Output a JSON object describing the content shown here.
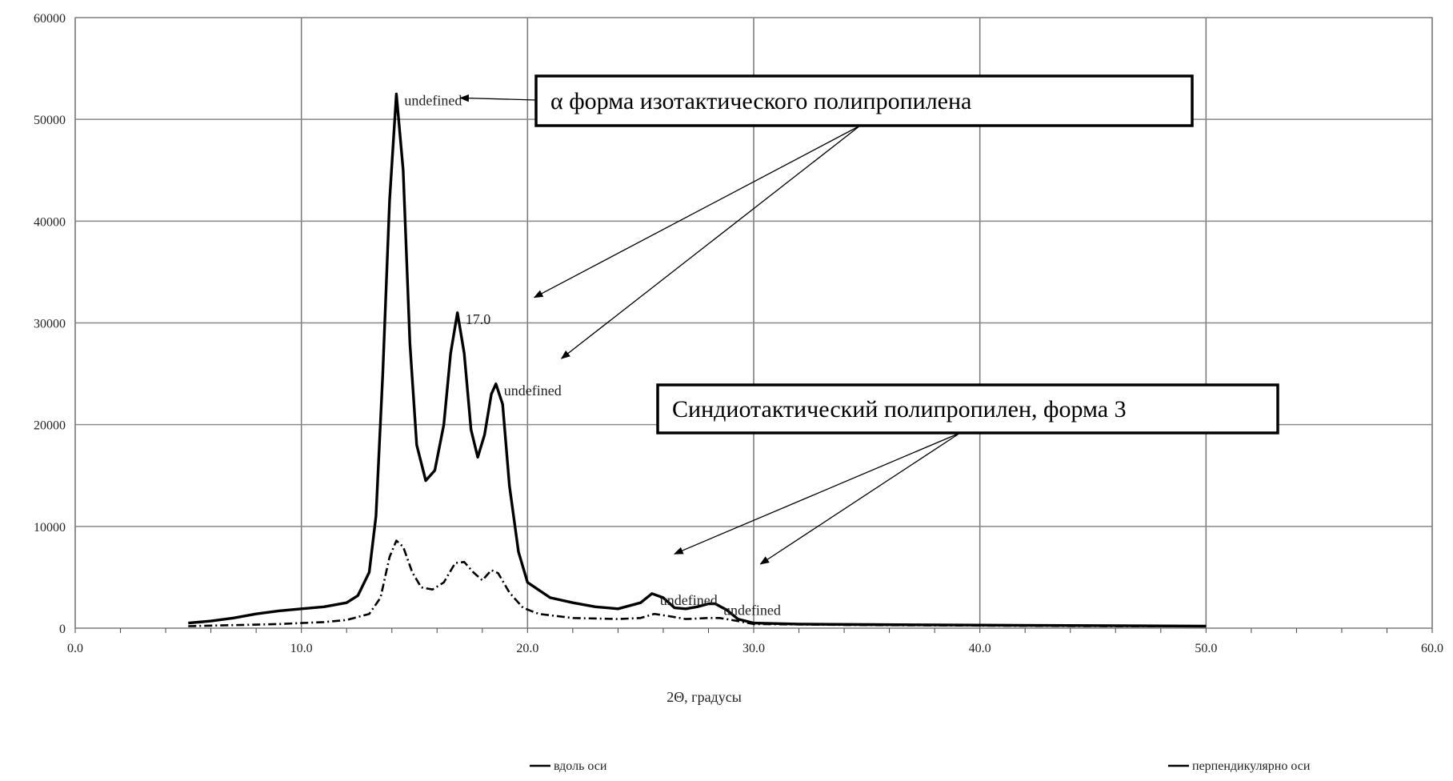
{
  "chart_data": {
    "type": "line",
    "xlabel": "2Θ, градусы",
    "ylabel": "",
    "xlim": [
      0,
      60
    ],
    "ylim": [
      0,
      60000
    ],
    "x_ticks": [
      "0.0",
      "10.0",
      "20.0",
      "30.0",
      "40.0",
      "50.0",
      "60.0"
    ],
    "y_ticks": [
      "0",
      "10000",
      "20000",
      "30000",
      "40000",
      "50000",
      "60000"
    ],
    "grid": true,
    "legend": "bottom",
    "series": [
      {
        "name": "вдоль оси",
        "style": "solid",
        "points": [
          [
            5,
            500
          ],
          [
            6,
            700
          ],
          [
            7,
            1000
          ],
          [
            8,
            1400
          ],
          [
            9,
            1700
          ],
          [
            10,
            1900
          ],
          [
            11,
            2100
          ],
          [
            12,
            2500
          ],
          [
            12.5,
            3200
          ],
          [
            13,
            5500
          ],
          [
            13.3,
            11000
          ],
          [
            13.6,
            25000
          ],
          [
            13.9,
            42000
          ],
          [
            14.2,
            52500
          ],
          [
            14.5,
            45000
          ],
          [
            14.8,
            28000
          ],
          [
            15.1,
            18000
          ],
          [
            15.5,
            14500
          ],
          [
            15.9,
            15500
          ],
          [
            16.3,
            20000
          ],
          [
            16.6,
            27000
          ],
          [
            16.9,
            31000
          ],
          [
            17.2,
            27000
          ],
          [
            17.5,
            19500
          ],
          [
            17.8,
            16800
          ],
          [
            18.1,
            19000
          ],
          [
            18.4,
            23000
          ],
          [
            18.6,
            24000
          ],
          [
            18.9,
            22000
          ],
          [
            19.2,
            14000
          ],
          [
            19.6,
            7500
          ],
          [
            20,
            4500
          ],
          [
            21,
            3000
          ],
          [
            22,
            2500
          ],
          [
            23,
            2100
          ],
          [
            24,
            1900
          ],
          [
            25,
            2500
          ],
          [
            25.5,
            3400
          ],
          [
            26,
            3000
          ],
          [
            26.5,
            2000
          ],
          [
            27,
            1900
          ],
          [
            27.5,
            2100
          ],
          [
            28,
            2400
          ],
          [
            28.3,
            2400
          ],
          [
            28.8,
            1800
          ],
          [
            29.3,
            900
          ],
          [
            30,
            500
          ],
          [
            32,
            400
          ],
          [
            35,
            350
          ],
          [
            40,
            300
          ],
          [
            45,
            250
          ],
          [
            50,
            200
          ]
        ]
      },
      {
        "name": "перпендикулярно оси",
        "style": "dashdot",
        "points": [
          [
            5,
            200
          ],
          [
            7,
            300
          ],
          [
            9,
            400
          ],
          [
            10,
            500
          ],
          [
            11,
            600
          ],
          [
            12,
            800
          ],
          [
            13,
            1400
          ],
          [
            13.5,
            3000
          ],
          [
            13.9,
            7000
          ],
          [
            14.2,
            8600
          ],
          [
            14.5,
            8000
          ],
          [
            14.9,
            5500
          ],
          [
            15.3,
            4000
          ],
          [
            15.8,
            3800
          ],
          [
            16.3,
            4500
          ],
          [
            16.8,
            6400
          ],
          [
            17.2,
            6500
          ],
          [
            17.6,
            5500
          ],
          [
            18,
            4700
          ],
          [
            18.4,
            5700
          ],
          [
            18.7,
            5400
          ],
          [
            19.2,
            3500
          ],
          [
            19.8,
            2000
          ],
          [
            20.5,
            1400
          ],
          [
            22,
            1000
          ],
          [
            24,
            900
          ],
          [
            25,
            1000
          ],
          [
            25.6,
            1400
          ],
          [
            26.2,
            1200
          ],
          [
            27,
            900
          ],
          [
            28,
            1000
          ],
          [
            28.5,
            1000
          ],
          [
            29.3,
            700
          ],
          [
            30,
            400
          ],
          [
            35,
            300
          ],
          [
            40,
            250
          ],
          [
            45,
            200
          ],
          [
            50,
            180
          ]
        ]
      }
    ],
    "peak_labels": [
      {
        "text": "undefined",
        "x": 14.2,
        "y": 52500
      },
      {
        "text": "17.0",
        "x": 16.9,
        "y": 31000
      },
      {
        "text": "undefined",
        "x": 18.6,
        "y": 24000
      },
      {
        "text": "undefined",
        "x": 25.5,
        "y": 3400
      },
      {
        "text": "undefined",
        "x": 28.3,
        "y": 2400
      }
    ],
    "annotations": [
      {
        "text": "α форма изотактического полипропилена",
        "targets": [
          [
            14.2,
            52500
          ],
          [
            20.3,
            32500
          ],
          [
            21.5,
            26500
          ]
        ]
      },
      {
        "text": "Синдиотактический полипропилен, форма 3",
        "targets": [
          [
            26.5,
            7300
          ],
          [
            30.3,
            6300
          ]
        ]
      }
    ]
  }
}
